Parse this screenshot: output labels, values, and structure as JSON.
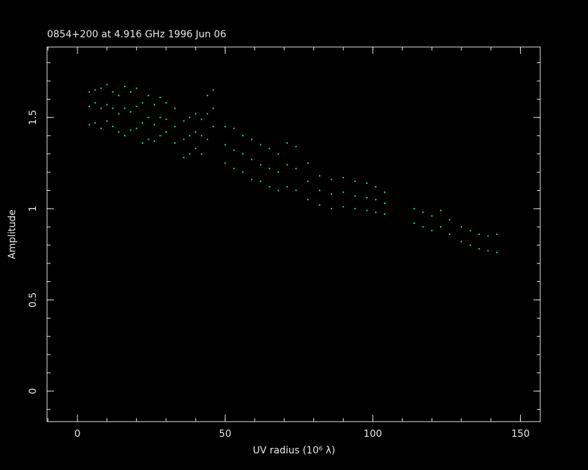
{
  "chart_data": {
    "type": "scatter",
    "title": "0854+200 at 4.916 GHz 1996 Jun 06",
    "x_label": "UV radius  (10⁶ λ)",
    "y_label": "Amplitude",
    "color": "#00ee88",
    "xlim": [
      -10.3,
      156.7
    ],
    "ylim": [
      -0.167,
      1.886
    ],
    "xticks": [
      0,
      50,
      100,
      150
    ],
    "yticks": [
      0,
      0.5,
      1,
      1.5
    ],
    "x": [
      4,
      4,
      4,
      6,
      6,
      6,
      8,
      8,
      8,
      10,
      10,
      10,
      12,
      12,
      12,
      14,
      14,
      14,
      16,
      16,
      16,
      18,
      18,
      18,
      20,
      20,
      20,
      22,
      22,
      22,
      24,
      24,
      24,
      26,
      26,
      26,
      28,
      28,
      28,
      30,
      30,
      30,
      33,
      33,
      33,
      36,
      36,
      36,
      38,
      38,
      38,
      40,
      40,
      40,
      42,
      42,
      42,
      44,
      44,
      44,
      46,
      46,
      46,
      50,
      50,
      50,
      53,
      53,
      53,
      56,
      56,
      56,
      59,
      59,
      59,
      62,
      62,
      62,
      65,
      65,
      65,
      68,
      68,
      68,
      71,
      71,
      71,
      74,
      74,
      74,
      78,
      78,
      78,
      82,
      82,
      82,
      86,
      86,
      86,
      90,
      90,
      90,
      94,
      94,
      94,
      98,
      98,
      98,
      101,
      101,
      101,
      104,
      104,
      104,
      114,
      114,
      117,
      117,
      120,
      120,
      123,
      123,
      126,
      126,
      130,
      130,
      133,
      133,
      136,
      136,
      139,
      139,
      142,
      142
    ],
    "y": [
      1.46,
      1.56,
      1.64,
      1.47,
      1.58,
      1.65,
      1.44,
      1.55,
      1.66,
      1.48,
      1.57,
      1.68,
      1.45,
      1.55,
      1.64,
      1.42,
      1.52,
      1.62,
      1.4,
      1.55,
      1.67,
      1.43,
      1.53,
      1.64,
      1.44,
      1.56,
      1.66,
      1.36,
      1.47,
      1.58,
      1.38,
      1.5,
      1.62,
      1.37,
      1.46,
      1.57,
      1.4,
      1.5,
      1.61,
      1.42,
      1.49,
      1.58,
      1.36,
      1.45,
      1.55,
      1.28,
      1.38,
      1.48,
      1.3,
      1.4,
      1.5,
      1.33,
      1.42,
      1.52,
      1.3,
      1.4,
      1.49,
      1.38,
      1.52,
      1.62,
      1.45,
      1.55,
      1.65,
      1.25,
      1.35,
      1.45,
      1.22,
      1.32,
      1.44,
      1.2,
      1.3,
      1.4,
      1.16,
      1.27,
      1.38,
      1.15,
      1.24,
      1.35,
      1.12,
      1.22,
      1.33,
      1.1,
      1.2,
      1.3,
      1.12,
      1.24,
      1.36,
      1.1,
      1.22,
      1.34,
      1.05,
      1.15,
      1.25,
      1.02,
      1.1,
      1.18,
      1.0,
      1.08,
      1.16,
      1.01,
      1.09,
      1.17,
      1.0,
      1.07,
      1.15,
      0.99,
      1.06,
      1.14,
      0.98,
      1.05,
      1.12,
      0.97,
      1.03,
      1.09,
      0.92,
      1.0,
      0.9,
      0.98,
      0.88,
      0.96,
      0.9,
      0.99,
      0.86,
      0.94,
      0.82,
      0.9,
      0.8,
      0.88,
      0.78,
      0.86,
      0.77,
      0.85,
      0.76,
      0.86
    ]
  }
}
